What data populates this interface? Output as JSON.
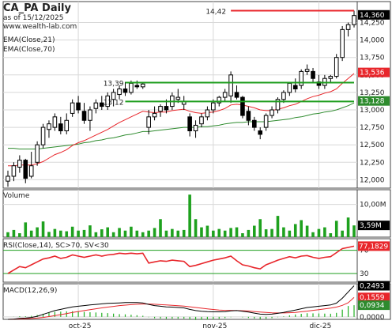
{
  "header": {
    "title": "CA_PA Daily",
    "as_of": "as of 15/12/2025",
    "site": "www.wealth-lab.com",
    "ema_short": "EMA(Close,21)",
    "ema_long": "EMA(Close,70)"
  },
  "colors": {
    "up": "#ffffff",
    "down": "#000000",
    "ema_short": "#e8262b",
    "ema_long": "#2e8b2e",
    "volume": "#1ea11e",
    "rsi": "#e8262b",
    "macd": "#000000",
    "signal": "#e8262b",
    "hist": "#22b022",
    "level_red": "#e8262b",
    "level_green": "#1e9e1e",
    "grid": "#d8d8d8"
  },
  "chart_data": [
    {
      "type": "candlestick",
      "title": "CA_PA Daily",
      "y_ticks": [
        "12,000",
        "12,250",
        "12,500",
        "12,750",
        "13,000",
        "13,250",
        "13,500",
        "13,750",
        "14,000",
        "14,250"
      ],
      "ylim": [
        11.88,
        14.55
      ],
      "x_ticks": [
        "oct-25",
        "nov-25",
        "dic-25"
      ],
      "candles": [
        {
          "o": 11.98,
          "h": 12.13,
          "l": 11.9,
          "c": 12.05
        },
        {
          "o": 12.05,
          "h": 12.25,
          "l": 11.98,
          "c": 12.2
        },
        {
          "o": 12.18,
          "h": 12.35,
          "l": 12.1,
          "c": 12.28
        },
        {
          "o": 12.28,
          "h": 12.3,
          "l": 11.95,
          "c": 12.02
        },
        {
          "o": 12.05,
          "h": 12.4,
          "l": 12.02,
          "c": 12.2
        },
        {
          "o": 12.25,
          "h": 12.55,
          "l": 12.2,
          "c": 12.5
        },
        {
          "o": 12.5,
          "h": 12.8,
          "l": 12.45,
          "c": 12.75
        },
        {
          "o": 12.72,
          "h": 12.85,
          "l": 12.6,
          "c": 12.8
        },
        {
          "o": 12.75,
          "h": 12.95,
          "l": 12.7,
          "c": 12.9
        },
        {
          "o": 12.8,
          "h": 12.9,
          "l": 12.65,
          "c": 12.7
        },
        {
          "o": 12.7,
          "h": 12.95,
          "l": 12.65,
          "c": 12.85
        },
        {
          "o": 12.95,
          "h": 13.15,
          "l": 12.9,
          "c": 13.1
        },
        {
          "o": 13.1,
          "h": 13.2,
          "l": 12.95,
          "c": 13.0
        },
        {
          "o": 12.98,
          "h": 13.1,
          "l": 12.8,
          "c": 12.85
        },
        {
          "o": 12.85,
          "h": 13.05,
          "l": 12.7,
          "c": 13.0
        },
        {
          "o": 13.02,
          "h": 13.15,
          "l": 12.95,
          "c": 13.1
        },
        {
          "o": 13.1,
          "h": 13.2,
          "l": 13.0,
          "c": 13.05
        },
        {
          "o": 13.05,
          "h": 13.25,
          "l": 13.0,
          "c": 13.2
        },
        {
          "o": 13.15,
          "h": 13.3,
          "l": 13.05,
          "c": 13.25
        },
        {
          "o": 13.22,
          "h": 13.35,
          "l": 13.15,
          "c": 13.3
        },
        {
          "o": 13.3,
          "h": 13.4,
          "l": 13.2,
          "c": 13.25
        },
        {
          "o": 13.25,
          "h": 13.42,
          "l": 13.22,
          "c": 13.38
        },
        {
          "o": 13.35,
          "h": 13.42,
          "l": 13.3,
          "c": 13.33
        },
        {
          "o": 13.33,
          "h": 13.4,
          "l": 13.3,
          "c": 13.37
        },
        {
          "o": 12.75,
          "h": 13.0,
          "l": 12.65,
          "c": 12.9
        },
        {
          "o": 12.9,
          "h": 13.05,
          "l": 12.85,
          "c": 12.95
        },
        {
          "o": 12.98,
          "h": 13.08,
          "l": 12.9,
          "c": 13.05
        },
        {
          "o": 13.05,
          "h": 13.15,
          "l": 12.95,
          "c": 13.0
        },
        {
          "o": 13.05,
          "h": 13.25,
          "l": 13.0,
          "c": 13.2
        },
        {
          "o": 13.15,
          "h": 13.3,
          "l": 13.1,
          "c": 13.18
        },
        {
          "o": 13.08,
          "h": 13.2,
          "l": 13.0,
          "c": 13.12
        },
        {
          "o": 12.9,
          "h": 12.95,
          "l": 12.62,
          "c": 12.7
        },
        {
          "o": 12.7,
          "h": 12.85,
          "l": 12.6,
          "c": 12.78
        },
        {
          "o": 12.8,
          "h": 12.95,
          "l": 12.75,
          "c": 12.9
        },
        {
          "o": 12.9,
          "h": 13.05,
          "l": 12.85,
          "c": 13.0
        },
        {
          "o": 13.0,
          "h": 13.15,
          "l": 12.95,
          "c": 13.1
        },
        {
          "o": 13.1,
          "h": 13.2,
          "l": 13.05,
          "c": 13.18
        },
        {
          "o": 13.18,
          "h": 13.3,
          "l": 13.12,
          "c": 13.25
        },
        {
          "o": 13.2,
          "h": 13.55,
          "l": 13.1,
          "c": 13.5
        },
        {
          "o": 13.25,
          "h": 13.35,
          "l": 13.15,
          "c": 13.18
        },
        {
          "o": 13.18,
          "h": 13.2,
          "l": 12.88,
          "c": 12.92
        },
        {
          "o": 12.98,
          "h": 13.05,
          "l": 12.78,
          "c": 12.85
        },
        {
          "o": 12.85,
          "h": 12.9,
          "l": 12.7,
          "c": 12.75
        },
        {
          "o": 12.7,
          "h": 12.75,
          "l": 12.58,
          "c": 12.65
        },
        {
          "o": 12.75,
          "h": 12.95,
          "l": 12.7,
          "c": 12.92
        },
        {
          "o": 12.92,
          "h": 13.05,
          "l": 12.88,
          "c": 13.0
        },
        {
          "o": 13.0,
          "h": 13.18,
          "l": 12.95,
          "c": 13.15
        },
        {
          "o": 13.15,
          "h": 13.28,
          "l": 13.1,
          "c": 13.25
        },
        {
          "o": 13.25,
          "h": 13.4,
          "l": 13.2,
          "c": 13.38
        },
        {
          "o": 13.35,
          "h": 13.45,
          "l": 13.25,
          "c": 13.3
        },
        {
          "o": 13.35,
          "h": 13.58,
          "l": 13.3,
          "c": 13.55
        },
        {
          "o": 13.55,
          "h": 13.65,
          "l": 13.5,
          "c": 13.58
        },
        {
          "o": 13.55,
          "h": 13.6,
          "l": 13.4,
          "c": 13.45
        },
        {
          "o": 13.4,
          "h": 13.5,
          "l": 13.3,
          "c": 13.35
        },
        {
          "o": 13.35,
          "h": 13.5,
          "l": 13.3,
          "c": 13.45
        },
        {
          "o": 13.45,
          "h": 13.5,
          "l": 13.4,
          "c": 13.48
        },
        {
          "o": 13.48,
          "h": 13.8,
          "l": 13.45,
          "c": 13.75
        },
        {
          "o": 13.75,
          "h": 14.2,
          "l": 13.7,
          "c": 14.15
        },
        {
          "o": 14.15,
          "h": 14.25,
          "l": 14.05,
          "c": 14.22
        },
        {
          "o": 14.22,
          "h": 14.42,
          "l": 14.18,
          "c": 14.35
        }
      ],
      "ema_short": [
        12.2,
        12.2,
        12.21,
        12.21,
        12.21,
        12.23,
        12.26,
        12.31,
        12.36,
        12.39,
        12.43,
        12.49,
        12.53,
        12.56,
        12.6,
        12.64,
        12.68,
        12.72,
        12.77,
        12.82,
        12.86,
        12.9,
        12.94,
        12.98,
        12.97,
        12.96,
        12.97,
        12.97,
        12.99,
        13.0,
        13.01,
        12.98,
        12.96,
        12.95,
        12.96,
        12.97,
        12.99,
        13.02,
        13.07,
        13.08,
        13.07,
        13.05,
        13.03,
        13.0,
        12.99,
        12.99,
        13.01,
        13.03,
        13.06,
        13.08,
        13.12,
        13.16,
        13.19,
        13.21,
        13.24,
        13.26,
        13.3,
        13.38,
        13.45,
        13.52
      ],
      "ema_long": [
        12.45,
        12.45,
        12.44,
        12.44,
        12.44,
        12.44,
        12.45,
        12.46,
        12.47,
        12.48,
        12.49,
        12.5,
        12.51,
        12.53,
        12.54,
        12.56,
        12.57,
        12.59,
        12.6,
        12.62,
        12.64,
        12.65,
        12.67,
        12.69,
        12.69,
        12.7,
        12.71,
        12.72,
        12.73,
        12.74,
        12.75,
        12.75,
        12.75,
        12.76,
        12.76,
        12.77,
        12.78,
        12.8,
        12.81,
        12.82,
        12.82,
        12.83,
        12.83,
        12.83,
        12.83,
        12.84,
        12.85,
        12.86,
        12.87,
        12.89,
        12.9,
        12.92,
        12.94,
        12.95,
        12.97,
        12.98,
        13.0,
        13.03,
        13.06,
        13.1
      ],
      "levels": [
        {
          "label": "14,42",
          "value": 14.42,
          "color": "red"
        },
        {
          "label": "13,39",
          "value": 13.39,
          "color": "green"
        },
        {
          "label": "13,12",
          "value": 13.12,
          "color": "green"
        }
      ],
      "right_labels": [
        {
          "label": "14,360",
          "value": 14.36,
          "style": "black"
        },
        {
          "label": "13,536",
          "value": 13.536,
          "style": "red"
        },
        {
          "label": "13,128",
          "value": 13.128,
          "style": "green"
        }
      ]
    },
    {
      "type": "bar",
      "title": "Volume",
      "ylim": [
        0,
        14.5
      ],
      "y_ticks": [
        "10,00M"
      ],
      "last_label": "3,59M",
      "values": [
        1.5,
        2.2,
        1.2,
        4.5,
        2.0,
        3.0,
        4.8,
        1.6,
        2.5,
        2.0,
        1.8,
        3.2,
        2.0,
        2.2,
        3.6,
        1.5,
        2.4,
        3.0,
        1.5,
        2.8,
        2.0,
        3.2,
        2.0,
        1.5,
        2.0,
        2.8,
        5.5,
        2.0,
        2.5,
        2.0,
        2.2,
        13.0,
        5.5,
        3.0,
        3.5,
        2.0,
        2.5,
        2.0,
        2.8,
        3.0,
        1.2,
        2.2,
        3.5,
        5.5,
        2.4,
        2.5,
        6.5,
        3.0,
        2.0,
        4.0,
        5.2,
        3.5,
        1.5,
        2.5,
        3.0,
        1.2,
        5.0,
        2.0,
        6.0,
        3.59
      ]
    },
    {
      "type": "line",
      "title": "RSI(Close,14), SC>70, SV<30",
      "ylim": [
        15,
        90
      ],
      "bands": [
        70,
        30
      ],
      "last_label": "77,1829",
      "values": [
        30,
        36,
        42,
        40,
        45,
        50,
        55,
        57,
        60,
        56,
        58,
        62,
        60,
        58,
        60,
        62,
        60,
        62,
        63,
        65,
        64,
        65,
        64,
        65,
        48,
        50,
        52,
        51,
        53,
        52,
        51,
        42,
        44,
        47,
        50,
        53,
        55,
        57,
        60,
        52,
        45,
        43,
        40,
        38,
        45,
        49,
        53,
        56,
        59,
        57,
        60,
        61,
        58,
        56,
        58,
        59,
        66,
        73,
        75,
        77.18
      ]
    },
    {
      "type": "line",
      "title": "MACD(12,26,9)",
      "ylim": [
        -0.02,
        0.265
      ],
      "y_ticks": [
        "0,0000"
      ],
      "last_labels": [
        "0,2493",
        "0,1559",
        "0,0934"
      ],
      "macd": [
        -0.02,
        -0.018,
        -0.012,
        -0.01,
        -0.005,
        0.005,
        0.02,
        0.035,
        0.05,
        0.06,
        0.07,
        0.08,
        0.085,
        0.09,
        0.095,
        0.1,
        0.104,
        0.108,
        0.11,
        0.112,
        0.114,
        0.115,
        0.114,
        0.112,
        0.1,
        0.09,
        0.085,
        0.08,
        0.078,
        0.075,
        0.072,
        0.06,
        0.05,
        0.045,
        0.042,
        0.04,
        0.04,
        0.042,
        0.048,
        0.05,
        0.045,
        0.038,
        0.03,
        0.022,
        0.02,
        0.022,
        0.028,
        0.035,
        0.045,
        0.055,
        0.065,
        0.075,
        0.08,
        0.085,
        0.09,
        0.095,
        0.11,
        0.15,
        0.2,
        0.2493
      ],
      "signal": [
        -0.02,
        -0.019,
        -0.017,
        -0.015,
        -0.013,
        -0.01,
        -0.005,
        0.002,
        0.01,
        0.018,
        0.026,
        0.035,
        0.043,
        0.05,
        0.058,
        0.065,
        0.072,
        0.078,
        0.084,
        0.09,
        0.094,
        0.098,
        0.101,
        0.103,
        0.103,
        0.101,
        0.098,
        0.095,
        0.092,
        0.089,
        0.086,
        0.081,
        0.075,
        0.069,
        0.064,
        0.059,
        0.055,
        0.052,
        0.051,
        0.05,
        0.049,
        0.047,
        0.043,
        0.039,
        0.035,
        0.032,
        0.031,
        0.031,
        0.033,
        0.036,
        0.041,
        0.046,
        0.052,
        0.058,
        0.064,
        0.07,
        0.078,
        0.092,
        0.113,
        0.1559
      ],
      "hist": [
        0.0,
        0.001,
        0.005,
        0.005,
        0.008,
        0.015,
        0.025,
        0.033,
        0.04,
        0.042,
        0.044,
        0.045,
        0.042,
        0.04,
        0.037,
        0.035,
        0.032,
        0.03,
        0.026,
        0.022,
        0.02,
        0.017,
        0.013,
        0.009,
        -0.003,
        -0.011,
        -0.013,
        -0.015,
        -0.014,
        -0.014,
        -0.014,
        -0.021,
        -0.025,
        -0.024,
        -0.022,
        -0.019,
        -0.015,
        -0.01,
        -0.003,
        0.0,
        -0.004,
        -0.009,
        -0.013,
        -0.017,
        -0.015,
        -0.01,
        -0.003,
        0.004,
        0.012,
        0.019,
        0.024,
        0.029,
        0.028,
        0.027,
        0.026,
        0.025,
        0.032,
        0.058,
        0.087,
        0.0934
      ]
    }
  ]
}
